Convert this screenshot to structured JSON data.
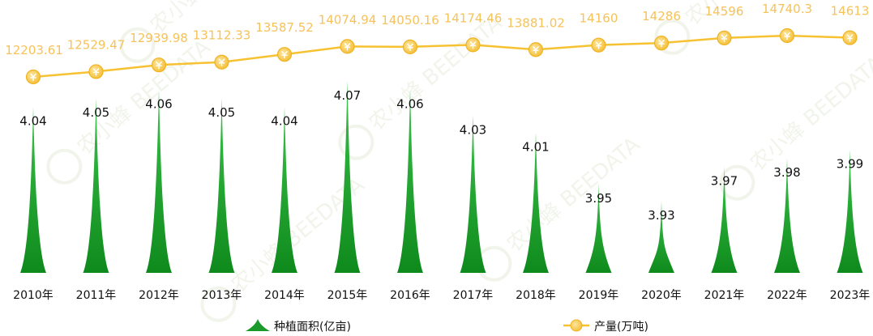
{
  "chart_data": {
    "type": "bar",
    "categories": [
      "2010年",
      "2011年",
      "2012年",
      "2013年",
      "2014年",
      "2015年",
      "2016年",
      "2017年",
      "2018年",
      "2019年",
      "2020年",
      "2021年",
      "2022年",
      "2023年"
    ],
    "series": [
      {
        "name": "种植面积(亿亩)",
        "type": "bar",
        "shape": "spike",
        "axis": "left",
        "color": "#1a9a2a",
        "values": [
          4.04,
          4.05,
          4.06,
          4.05,
          4.04,
          4.07,
          4.06,
          4.03,
          4.01,
          3.95,
          3.93,
          3.97,
          3.98,
          3.99
        ],
        "labels": [
          "4.04",
          "4.05",
          "4.06",
          "4.05",
          "4.04",
          "4.07",
          "4.06",
          "4.03",
          "4.01",
          "3.95",
          "3.93",
          "3.97",
          "3.98",
          "3.99"
        ]
      },
      {
        "name": "产量(万吨)",
        "type": "line",
        "axis": "right",
        "color": "#f6c232",
        "marker": "coin-icon",
        "values": [
          12203.61,
          12529.47,
          12939.98,
          13112.33,
          13587.52,
          14074.94,
          14050.16,
          14174.46,
          13881.02,
          14160,
          14286,
          14596,
          14740.3,
          14613
        ],
        "labels": [
          "12203.61",
          "12529.47",
          "12939.98",
          "13112.33",
          "13587.52",
          "14074.94",
          "14050.16",
          "14174.46",
          "13881.02",
          "14160",
          "14286",
          "14596",
          "14740.3",
          "14613"
        ]
      }
    ],
    "left_ylim": [
      3.85,
      4.07
    ],
    "right_ylim": [
      8000,
      15000
    ],
    "grid": false,
    "legend_position": "bottom",
    "watermark": "农小蜂 BEEDATA"
  }
}
